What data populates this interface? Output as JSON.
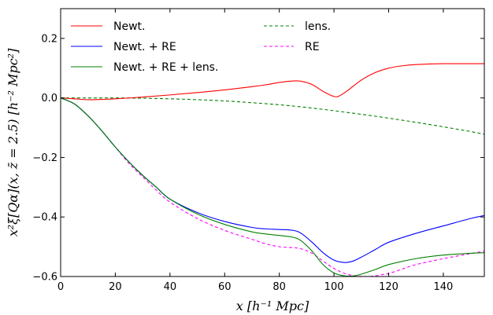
{
  "chart_data": {
    "type": "line",
    "xlabel": "x [h⁻¹ Mpc]",
    "ylabel": "x²ξ[Qα](x, z̄ = 2.5) [h⁻² Mpc²]",
    "xlim": [
      0,
      155
    ],
    "ylim": [
      -0.6,
      0.3
    ],
    "xticks": [
      0,
      20,
      40,
      60,
      80,
      100,
      120,
      140
    ],
    "yticks": [
      -0.6,
      -0.4,
      -0.2,
      0.0,
      0.2
    ],
    "xtick_labels": [
      "0",
      "20",
      "40",
      "60",
      "80",
      "100",
      "120",
      "140"
    ],
    "ytick_labels": [
      "−0.6",
      "−0.4",
      "−0.2",
      "0.0",
      "0.2"
    ],
    "grid": false,
    "legend_position": "top",
    "series": [
      {
        "name": "Newt.",
        "color": "#ff0000",
        "style": "solid",
        "x": [
          0,
          5,
          10,
          15,
          20,
          30,
          40,
          50,
          60,
          70,
          75,
          80,
          85,
          88,
          92,
          96,
          100,
          102,
          105,
          110,
          115,
          120,
          125,
          130,
          140,
          150,
          155
        ],
        "y": [
          0.0,
          -0.003,
          -0.006,
          -0.005,
          -0.003,
          0.003,
          0.01,
          0.018,
          0.027,
          0.038,
          0.044,
          0.052,
          0.057,
          0.056,
          0.045,
          0.022,
          0.005,
          0.007,
          0.025,
          0.06,
          0.085,
          0.1,
          0.108,
          0.112,
          0.115,
          0.115,
          0.115
        ]
      },
      {
        "name": "Newt. + RE",
        "color": "#0000ff",
        "style": "solid",
        "x": [
          0,
          5,
          10,
          15,
          20,
          25,
          30,
          35,
          40,
          50,
          60,
          70,
          75,
          80,
          85,
          88,
          92,
          96,
          100,
          104,
          107,
          110,
          115,
          120,
          130,
          140,
          150,
          155
        ],
        "y": [
          0.0,
          -0.02,
          -0.06,
          -0.11,
          -0.165,
          -0.215,
          -0.26,
          -0.3,
          -0.34,
          -0.385,
          -0.415,
          -0.435,
          -0.44,
          -0.442,
          -0.445,
          -0.455,
          -0.485,
          -0.52,
          -0.545,
          -0.553,
          -0.548,
          -0.535,
          -0.51,
          -0.485,
          -0.455,
          -0.43,
          -0.405,
          -0.395
        ]
      },
      {
        "name": "Newt. + RE + lens.",
        "color": "#008000",
        "style": "solid",
        "x": [
          0,
          5,
          10,
          15,
          20,
          25,
          30,
          35,
          40,
          50,
          60,
          70,
          75,
          80,
          85,
          88,
          92,
          96,
          100,
          104,
          107,
          110,
          115,
          120,
          130,
          140,
          150,
          155
        ],
        "y": [
          0.0,
          -0.02,
          -0.06,
          -0.11,
          -0.165,
          -0.215,
          -0.26,
          -0.3,
          -0.34,
          -0.39,
          -0.425,
          -0.45,
          -0.457,
          -0.462,
          -0.468,
          -0.48,
          -0.515,
          -0.56,
          -0.588,
          -0.598,
          -0.598,
          -0.592,
          -0.577,
          -0.56,
          -0.54,
          -0.528,
          -0.522,
          -0.52
        ]
      },
      {
        "name": "lens.",
        "color": "#008000",
        "style": "dashed",
        "x": [
          0,
          10,
          20,
          30,
          40,
          50,
          60,
          70,
          80,
          90,
          100,
          110,
          120,
          130,
          140,
          150,
          155
        ],
        "y": [
          0.0,
          0.0,
          0.0,
          -0.001,
          -0.003,
          -0.006,
          -0.01,
          -0.016,
          -0.023,
          -0.032,
          -0.043,
          -0.055,
          -0.068,
          -0.082,
          -0.097,
          -0.113,
          -0.122
        ]
      },
      {
        "name": "RE",
        "color": "#ff00ff",
        "style": "dashed",
        "x": [
          0,
          5,
          10,
          15,
          20,
          25,
          30,
          35,
          40,
          50,
          60,
          70,
          75,
          80,
          85,
          88,
          92,
          96,
          100,
          104,
          108,
          112,
          115,
          118,
          120,
          125,
          130,
          140,
          150,
          155
        ],
        "y": [
          0.0,
          -0.02,
          -0.06,
          -0.11,
          -0.165,
          -0.22,
          -0.265,
          -0.31,
          -0.35,
          -0.405,
          -0.445,
          -0.475,
          -0.49,
          -0.5,
          -0.503,
          -0.507,
          -0.522,
          -0.548,
          -0.573,
          -0.59,
          -0.598,
          -0.6,
          -0.598,
          -0.593,
          -0.59,
          -0.575,
          -0.56,
          -0.54,
          -0.523,
          -0.515
        ]
      }
    ]
  }
}
